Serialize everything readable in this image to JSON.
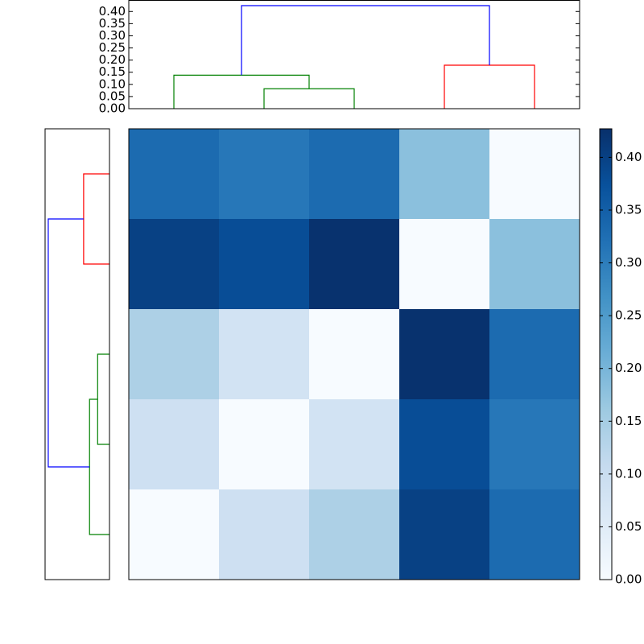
{
  "chart_data": [
    {
      "type": "dendrogram",
      "orientation": "top",
      "xlim": [
        0,
        50
      ],
      "ylim": [
        0,
        0.444
      ],
      "yticks": [
        {
          "value": 0,
          "label": "0.00"
        },
        {
          "value": 0.05,
          "label": "0.05"
        },
        {
          "value": 0.1,
          "label": "0.10"
        },
        {
          "value": 0.15,
          "label": "0.15"
        },
        {
          "value": 0.2,
          "label": "0.20"
        },
        {
          "value": 0.25,
          "label": "0.25"
        },
        {
          "value": 0.3,
          "label": "0.30"
        },
        {
          "value": 0.35,
          "label": "0.35"
        },
        {
          "value": 0.4,
          "label": "0.40"
        }
      ],
      "links": [
        {
          "color": "#008000",
          "icoord": [
            15,
            15,
            25,
            25
          ],
          "dcoord": [
            0,
            0.082,
            0.082,
            0
          ]
        },
        {
          "color": "#008000",
          "icoord": [
            5,
            5,
            20,
            20
          ],
          "dcoord": [
            0,
            0.138,
            0.138,
            0.082
          ]
        },
        {
          "color": "#ff0000",
          "icoord": [
            35,
            35,
            45,
            45
          ],
          "dcoord": [
            0,
            0.179,
            0.179,
            0
          ]
        },
        {
          "color": "#0000ff",
          "icoord": [
            12.5,
            12.5,
            40,
            40
          ],
          "dcoord": [
            0.138,
            0.424,
            0.424,
            0.179
          ]
        }
      ]
    },
    {
      "type": "dendrogram",
      "orientation": "left",
      "ylim": [
        0,
        50
      ],
      "xlim": [
        0.446,
        0
      ],
      "links": [
        {
          "color": "#ff0000",
          "icoord": [
            5,
            5,
            15,
            15
          ],
          "dcoord": [
            0,
            0.179,
            0.179,
            0
          ]
        },
        {
          "color": "#008000",
          "icoord": [
            25,
            25,
            35,
            35
          ],
          "dcoord": [
            0,
            0.082,
            0.082,
            0
          ]
        },
        {
          "color": "#008000",
          "icoord": [
            30,
            30,
            45,
            45
          ],
          "dcoord": [
            0.082,
            0.138,
            0.138,
            0
          ]
        },
        {
          "color": "#0000ff",
          "icoord": [
            10,
            10,
            37.5,
            37.5
          ],
          "dcoord": [
            0.179,
            0.424,
            0.424,
            0.138
          ]
        }
      ]
    },
    {
      "type": "heatmap",
      "values": [
        [
          0.33,
          0.31,
          0.33,
          0.18,
          0.0
        ],
        [
          0.4,
          0.38,
          0.424,
          0.0,
          0.18
        ],
        [
          0.14,
          0.08,
          0.0,
          0.424,
          0.33
        ],
        [
          0.09,
          0.0,
          0.08,
          0.38,
          0.31
        ],
        [
          0.0,
          0.09,
          0.14,
          0.4,
          0.33
        ]
      ],
      "vlim": [
        0,
        0.427
      ],
      "colors": [
        "#f7fbff",
        "#deebf7",
        "#c6dbef",
        "#9ecae1",
        "#6baed6",
        "#4292c6",
        "#2171b5",
        "#08519c",
        "#08306b"
      ],
      "colorbar_ticks": [
        {
          "value": 0,
          "label": "0.00"
        },
        {
          "value": 0.05,
          "label": "0.05"
        },
        {
          "value": 0.1,
          "label": "0.10"
        },
        {
          "value": 0.15,
          "label": "0.15"
        },
        {
          "value": 0.2,
          "label": "0.20"
        },
        {
          "value": 0.25,
          "label": "0.25"
        },
        {
          "value": 0.3,
          "label": "0.30"
        },
        {
          "value": 0.35,
          "label": "0.35"
        },
        {
          "value": 0.4,
          "label": "0.40"
        }
      ]
    }
  ]
}
